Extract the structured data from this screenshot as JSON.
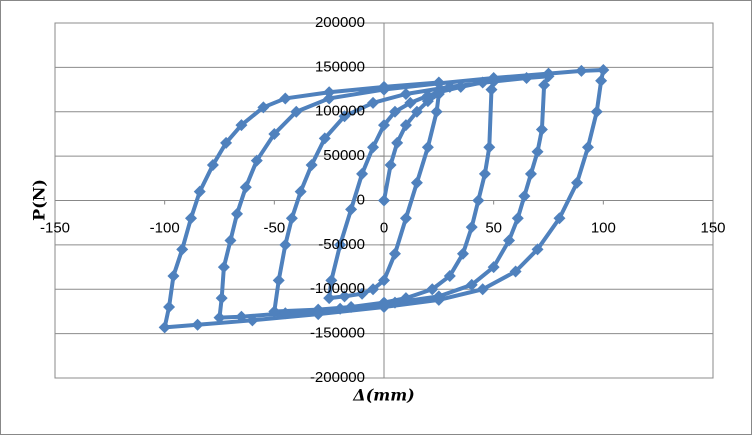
{
  "chart_data": {
    "type": "line",
    "xlabel": "Δ(mm)",
    "ylabel": "P(N)",
    "color": "#4f81bd",
    "grid": true,
    "xlim": [
      -150,
      150
    ],
    "xticks": [
      -150,
      -100,
      -50,
      0,
      50,
      100,
      150
    ],
    "ylim": [
      -200000,
      200000
    ],
    "yticks": [
      -200000,
      -150000,
      -100000,
      -50000,
      0,
      50000,
      100000,
      150000,
      200000
    ],
    "x": [
      0,
      3,
      6,
      10,
      15,
      20,
      25,
      24,
      20,
      15,
      10,
      5,
      0,
      -5,
      -10,
      -18,
      -25,
      -24,
      -20,
      -15,
      -10,
      -5,
      0,
      5,
      12,
      20,
      25,
      35,
      45,
      50,
      49,
      48,
      46,
      43,
      40,
      36,
      30,
      22,
      10,
      0,
      -15,
      -30,
      -50,
      -48,
      -45,
      -42,
      -38,
      -33,
      -27,
      -18,
      -5,
      10,
      30,
      50,
      65,
      75,
      73,
      72,
      70,
      67,
      64,
      61,
      57,
      50,
      40,
      25,
      5,
      -20,
      -45,
      -65,
      -75,
      -74,
      -73,
      -70,
      -67,
      -63,
      -58,
      -50,
      -40,
      -25,
      0,
      25,
      50,
      75,
      90,
      100,
      99,
      97,
      93,
      88,
      80,
      70,
      60,
      45,
      25,
      0,
      -30,
      -60,
      -85,
      -100,
      -98,
      -96,
      -92,
      -88,
      -84,
      -78,
      -72,
      -65,
      -55,
      -45,
      -25,
      0,
      25
    ],
    "values": [
      0,
      40000,
      65000,
      85000,
      100000,
      112000,
      120000,
      100000,
      60000,
      20000,
      -20000,
      -60000,
      -90000,
      -100000,
      -105000,
      -108000,
      -110000,
      -90000,
      -50000,
      -10000,
      30000,
      60000,
      85000,
      100000,
      110000,
      118000,
      122000,
      128000,
      133000,
      135000,
      125000,
      60000,
      30000,
      0,
      -30000,
      -60000,
      -85000,
      -100000,
      -110000,
      -115000,
      -120000,
      -123000,
      -125000,
      -90000,
      -50000,
      -20000,
      10000,
      40000,
      70000,
      95000,
      110000,
      120000,
      128000,
      134000,
      138000,
      140000,
      130000,
      80000,
      55000,
      30000,
      5000,
      -20000,
      -45000,
      -75000,
      -95000,
      -108000,
      -115000,
      -122000,
      -127000,
      -131000,
      -132000,
      -110000,
      -75000,
      -45000,
      -15000,
      15000,
      45000,
      75000,
      100000,
      115000,
      125000,
      132000,
      138000,
      143000,
      146000,
      147000,
      135000,
      100000,
      60000,
      20000,
      -20000,
      -55000,
      -80000,
      -100000,
      -112000,
      -120000,
      -128000,
      -135000,
      -140000,
      -143000,
      -120000,
      -85000,
      -55000,
      -20000,
      10000,
      40000,
      65000,
      85000,
      105000,
      115000,
      122000,
      128000,
      133000
    ]
  }
}
